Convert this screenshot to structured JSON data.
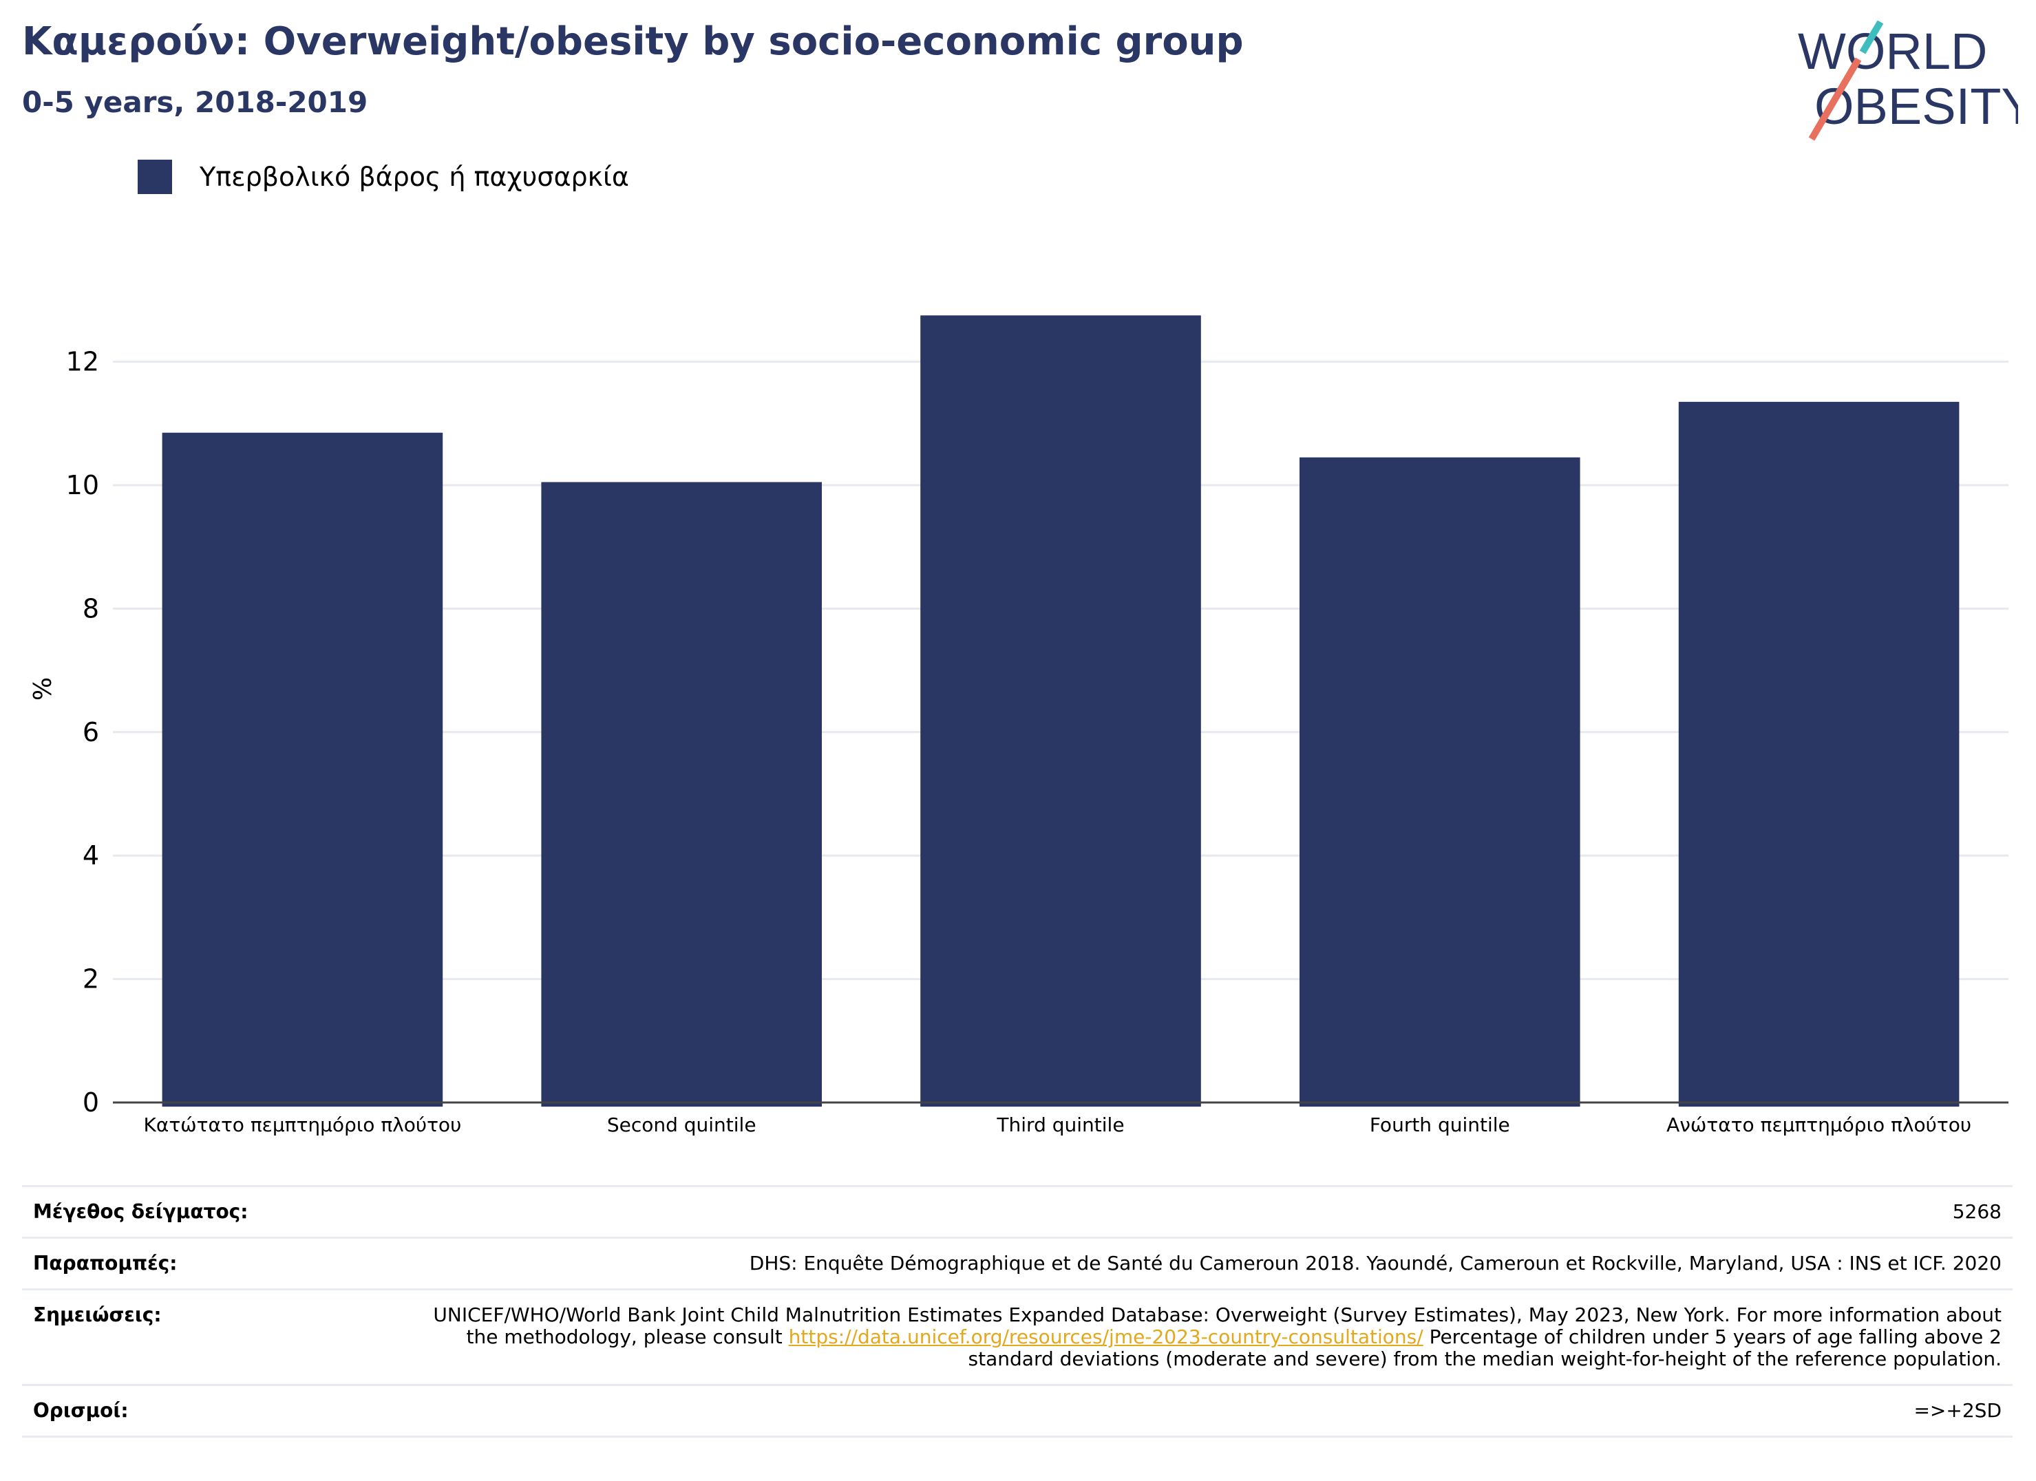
{
  "header": {
    "title": "Καμερούν: Overweight/obesity by socio-economic group",
    "subtitle": "0-5 years, 2018-2019"
  },
  "logo": {
    "line1": "WORLD",
    "line2": "OBESITY",
    "colors": {
      "text": "#2a3663",
      "slash_red": "#e8705e",
      "slash_teal": "#3dbdbd"
    }
  },
  "colors": {
    "bar": "#2a3663",
    "grid": "#e6e9ee",
    "axis": "#444444"
  },
  "chart_data": {
    "type": "bar",
    "ylabel": "%",
    "xlabel": "",
    "ylim": [
      0,
      13.4
    ],
    "yticks": [
      0,
      2,
      4,
      6,
      8,
      10,
      12
    ],
    "grid": true,
    "legend_placement": "top-left",
    "categories": [
      "Κατώτατο πεμπτημόριο πλούτου",
      "Second quintile",
      "Third quintile",
      "Fourth quintile",
      "Ανώτατο πεμπτημόριο πλούτου"
    ],
    "series": [
      {
        "name": "Υπερβολικό βάρος ή παχυσαρκία",
        "values": [
          10.85,
          10.05,
          12.75,
          10.45,
          11.35
        ]
      }
    ]
  },
  "info": {
    "sample_size": {
      "label": "Μέγεθος δείγματος:",
      "value": "5268"
    },
    "references": {
      "label": "Παραπομπές:",
      "value": "DHS: Enquête Démographique et de Santé du Cameroun 2018. Yaoundé, Cameroun et Rockville, Maryland, USA : INS et ICF. 2020"
    },
    "notes": {
      "label": "Σημειώσεις:",
      "before": "UNICEF/WHO/World Bank Joint Child Malnutrition Estimates Expanded Database: Overweight (Survey Estimates), May 2023, New York. For more information about the methodology, please consult ",
      "link": "https://data.unicef.org/resources/jme-2023-country-consultations/",
      "after": " Percentage of children under 5 years of age falling above 2 standard deviations (moderate and severe) from the median weight-for-height of the reference population."
    },
    "definitions": {
      "label": "Ορισμοί:",
      "value": "=>+2SD"
    }
  }
}
